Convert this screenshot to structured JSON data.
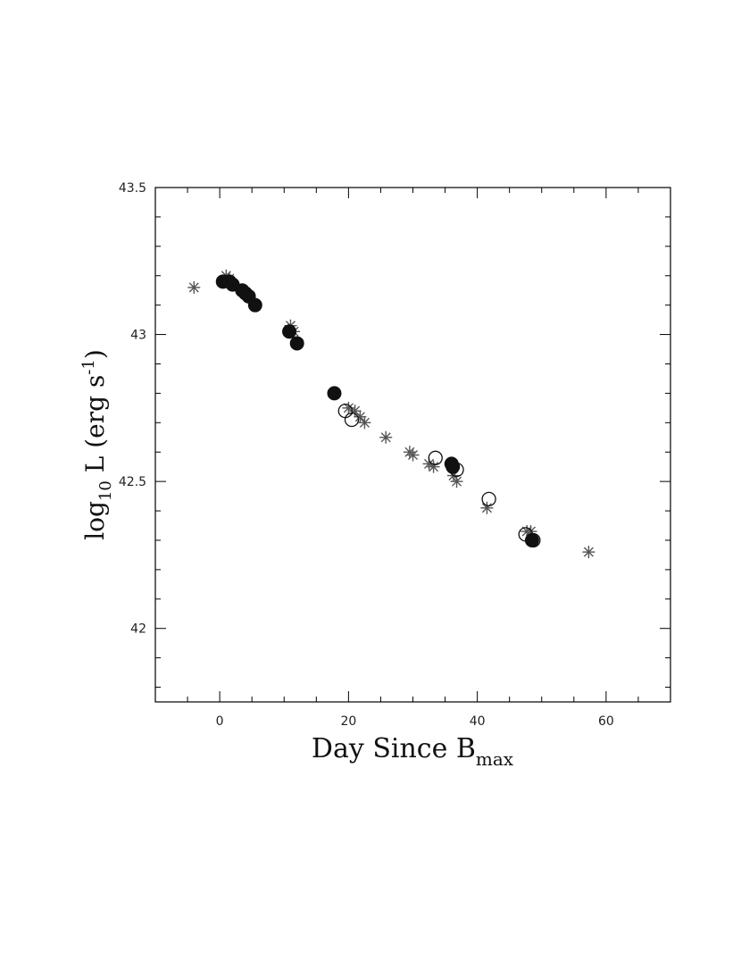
{
  "chart_data": {
    "type": "scatter",
    "title": "",
    "xlabel": {
      "main": "Day Since B",
      "sub": "max"
    },
    "ylabel": {
      "pre": "log",
      "sub": "10",
      "mid": " L (erg s",
      "sup": "-1",
      "post": ")"
    },
    "xlim": [
      -10,
      70
    ],
    "ylim": [
      41.75,
      43.5
    ],
    "x_ticks": [
      0,
      20,
      40,
      60
    ],
    "y_ticks": [
      42,
      42.5,
      43,
      43.5
    ],
    "x_tick_labels": [
      "0",
      "20",
      "40",
      "60"
    ],
    "y_tick_labels": [
      "42",
      "42.5",
      "43",
      "43.5"
    ],
    "grid": false,
    "legend": "none",
    "colors": {
      "marker_dark": "#111111",
      "marker_gray": "#555555",
      "axis": "#000000"
    },
    "series": [
      {
        "marker": "asterisk",
        "points": [
          [
            -4,
            43.16
          ],
          [
            1,
            43.2
          ],
          [
            1.5,
            43.19
          ],
          [
            11,
            43.03
          ],
          [
            11.5,
            43.01
          ],
          [
            20,
            42.75
          ],
          [
            21,
            42.74
          ],
          [
            21.8,
            42.72
          ],
          [
            22.5,
            42.7
          ],
          [
            25.8,
            42.65
          ],
          [
            29.5,
            42.6
          ],
          [
            30,
            42.59
          ],
          [
            32.5,
            42.56
          ],
          [
            33.2,
            42.55
          ],
          [
            36.3,
            42.52
          ],
          [
            36.8,
            42.5
          ],
          [
            41.5,
            42.41
          ],
          [
            47.7,
            42.33
          ],
          [
            48.3,
            42.33
          ],
          [
            57.3,
            42.26
          ]
        ]
      },
      {
        "marker": "open-circle",
        "points": [
          [
            19.5,
            42.74
          ],
          [
            20.5,
            42.71
          ],
          [
            33.5,
            42.58
          ],
          [
            36.8,
            42.54
          ],
          [
            41.8,
            42.44
          ],
          [
            47.5,
            42.32
          ],
          [
            48.7,
            42.3
          ]
        ]
      },
      {
        "marker": "filled-circle",
        "points": [
          [
            0.5,
            43.18
          ],
          [
            1.5,
            43.18
          ],
          [
            2.0,
            43.17
          ],
          [
            3.5,
            43.15
          ],
          [
            4.0,
            43.14
          ],
          [
            4.5,
            43.13
          ],
          [
            5.5,
            43.1
          ],
          [
            10.8,
            43.01
          ],
          [
            12.0,
            42.97
          ],
          [
            17.8,
            42.8
          ],
          [
            36.0,
            42.56
          ],
          [
            36.2,
            42.55
          ],
          [
            48.5,
            42.3
          ]
        ]
      }
    ]
  }
}
